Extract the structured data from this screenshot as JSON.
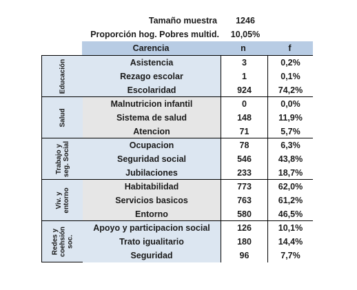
{
  "summary": {
    "sample_label": "Tamaño muestra",
    "sample_value": "1246",
    "proportion_label": "Proporción hog. Pobres multid.",
    "proportion_value": "10,05%"
  },
  "header": {
    "carencia": "Carencia",
    "n": "n",
    "f": "f"
  },
  "colors": {
    "blue_fill": "#dce6f1",
    "gray_fill": "#e6e6e6",
    "header_fill": "#b8cce4",
    "border": "#000000"
  },
  "groups": [
    {
      "label": "Educación",
      "rows": [
        {
          "carencia": "Asistencia",
          "n": "3",
          "f": "0,2%"
        },
        {
          "carencia": "Rezago escolar",
          "n": "1",
          "f": "0,1%"
        },
        {
          "carencia": "Escolaridad",
          "n": "924",
          "f": "74,2%"
        }
      ]
    },
    {
      "label": "Salud",
      "rows": [
        {
          "carencia": "Malnutricion infantil",
          "n": "0",
          "f": "0,0%"
        },
        {
          "carencia": "Sistema de salud",
          "n": "148",
          "f": "11,9%"
        },
        {
          "carencia": "Atencion",
          "n": "71",
          "f": "5,7%"
        }
      ]
    },
    {
      "label": "Trabajo y\nseg. Social",
      "rows": [
        {
          "carencia": "Ocupacion",
          "n": "78",
          "f": "6,3%"
        },
        {
          "carencia": "Seguridad social",
          "n": "546",
          "f": "43,8%"
        },
        {
          "carencia": "Jubilaciones",
          "n": "233",
          "f": "18,7%"
        }
      ]
    },
    {
      "label": "Viv. y\nentorno",
      "rows": [
        {
          "carencia": "Habitabilidad",
          "n": "773",
          "f": "62,0%"
        },
        {
          "carencia": "Servicios basicos",
          "n": "763",
          "f": "61,2%"
        },
        {
          "carencia": "Entorno",
          "n": "580",
          "f": "46,5%"
        }
      ]
    },
    {
      "label": "Redes y\ncoehsión\nsoc.",
      "rows": [
        {
          "carencia": "Apoyo y participacion social",
          "n": "126",
          "f": "10,1%"
        },
        {
          "carencia": "Trato igualitario",
          "n": "180",
          "f": "14,4%"
        },
        {
          "carencia": "Seguridad",
          "n": "96",
          "f": "7,7%"
        }
      ]
    }
  ]
}
